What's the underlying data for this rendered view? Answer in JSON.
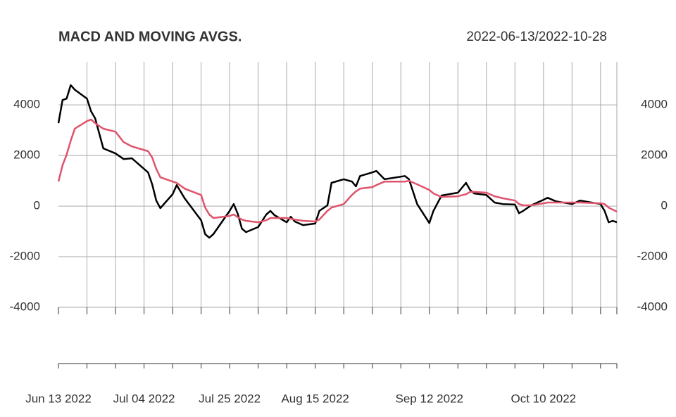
{
  "chart_data": {
    "type": "line",
    "title": "MACD AND MOVING AVGS.",
    "subtitle": "2022-06-13/2022-10-28",
    "x": [
      "2022-06-13",
      "2022-06-14",
      "2022-06-15",
      "2022-06-16",
      "2022-06-17",
      "2022-06-20",
      "2022-06-21",
      "2022-06-22",
      "2022-06-24",
      "2022-06-27",
      "2022-06-29",
      "2022-07-01",
      "2022-07-05",
      "2022-07-06",
      "2022-07-07",
      "2022-07-08",
      "2022-07-11",
      "2022-07-12",
      "2022-07-14",
      "2022-07-18",
      "2022-07-19",
      "2022-07-20",
      "2022-07-21",
      "2022-07-25",
      "2022-07-26",
      "2022-07-27",
      "2022-07-28",
      "2022-07-29",
      "2022-08-01",
      "2022-08-03",
      "2022-08-04",
      "2022-08-05",
      "2022-08-08",
      "2022-08-09",
      "2022-08-10",
      "2022-08-12",
      "2022-08-15",
      "2022-08-16",
      "2022-08-18",
      "2022-08-19",
      "2022-08-22",
      "2022-08-24",
      "2022-08-25",
      "2022-08-26",
      "2022-08-29",
      "2022-08-30",
      "2022-09-01",
      "2022-09-06",
      "2022-09-07",
      "2022-09-09",
      "2022-09-12",
      "2022-09-13",
      "2022-09-15",
      "2022-09-19",
      "2022-09-21",
      "2022-09-22",
      "2022-09-23",
      "2022-09-26",
      "2022-09-28",
      "2022-09-30",
      "2022-10-03",
      "2022-10-04",
      "2022-10-05",
      "2022-10-07",
      "2022-10-10",
      "2022-10-11",
      "2022-10-13",
      "2022-10-17",
      "2022-10-19",
      "2022-10-24",
      "2022-10-25",
      "2022-10-26",
      "2022-10-27",
      "2022-10-28"
    ],
    "series": [
      {
        "color": "#000000",
        "values": [
          3280,
          4190,
          4250,
          4780,
          4600,
          4250,
          3750,
          3470,
          2280,
          2080,
          1860,
          1890,
          1330,
          860,
          220,
          -80,
          470,
          830,
          300,
          -560,
          -1110,
          -1250,
          -1110,
          -190,
          80,
          -310,
          -890,
          -1030,
          -830,
          -330,
          -190,
          -360,
          -640,
          -420,
          -610,
          -750,
          -690,
          -190,
          30,
          920,
          1060,
          970,
          780,
          1190,
          1330,
          1390,
          1060,
          1190,
          1060,
          80,
          -670,
          -190,
          420,
          530,
          920,
          640,
          500,
          440,
          140,
          80,
          60,
          -280,
          -190,
          30,
          250,
          330,
          190,
          80,
          220,
          80,
          -190,
          -640,
          -580,
          -640
        ]
      },
      {
        "color": "#DF536B",
        "values": [
          970,
          1610,
          2030,
          2580,
          3060,
          3360,
          3420,
          3280,
          3060,
          2940,
          2530,
          2360,
          2170,
          1920,
          1470,
          1140,
          970,
          920,
          690,
          440,
          -60,
          -330,
          -470,
          -390,
          -330,
          -440,
          -530,
          -580,
          -640,
          -560,
          -470,
          -470,
          -470,
          -500,
          -530,
          -580,
          -610,
          -530,
          -190,
          -60,
          80,
          440,
          580,
          690,
          750,
          830,
          970,
          970,
          1000,
          860,
          640,
          500,
          360,
          390,
          470,
          560,
          560,
          530,
          390,
          310,
          220,
          80,
          30,
          30,
          110,
          140,
          140,
          140,
          140,
          110,
          80,
          -60,
          -140,
          -220
        ]
      }
    ],
    "xlim": [
      "2022-06-13",
      "2022-10-28"
    ],
    "xticks": [
      {
        "value": "2022-06-13",
        "label": "Jun 13 2022"
      },
      "2022-06-20",
      "2022-06-27",
      {
        "value": "2022-07-04",
        "label": "Jul 04 2022"
      },
      "2022-07-11",
      "2022-07-18",
      {
        "value": "2022-07-25",
        "label": "Jul 25 2022"
      },
      "2022-08-01",
      "2022-08-08",
      {
        "value": "2022-08-15",
        "label": "Aug 15 2022"
      },
      "2022-08-22",
      "2022-08-29",
      "2022-09-05",
      {
        "value": "2022-09-12",
        "label": "Sep 12 2022"
      },
      "2022-09-19",
      "2022-09-26",
      "2022-10-03",
      {
        "value": "2022-10-10",
        "label": "Oct 10 2022"
      },
      "2022-10-17",
      "2022-10-24",
      "2022-10-28"
    ],
    "ylim": [
      -4000,
      5700
    ],
    "yticks": [
      -4000,
      -2000,
      0,
      2000,
      4000
    ],
    "grid": true
  }
}
